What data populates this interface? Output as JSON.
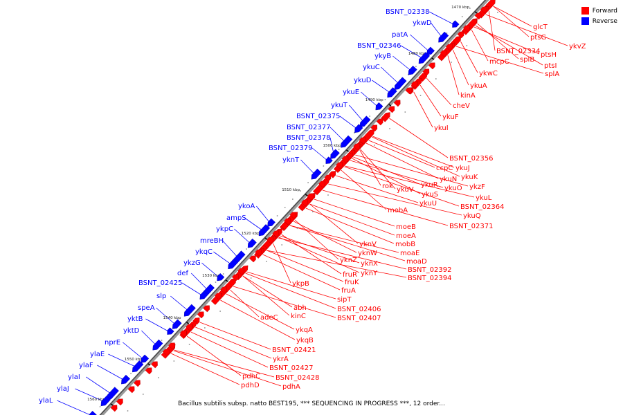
{
  "legend": [
    {
      "label": "Forward",
      "color": "#ff0000"
    },
    {
      "label": "Reverse",
      "color": "#0000ff"
    }
  ],
  "caption": "Bacillus subtilis subsp. natto BEST195, *** SEQUENCING IN PROGRESS ***, 12 order...",
  "ticks": [
    "1470 kbp",
    "1480 kbp",
    "1490 kbp",
    "1500 kbp",
    "1510 kbp",
    "1520 kbp",
    "1530 kbp",
    "1540 kbp",
    "1550 kbp",
    "1560 kbp"
  ],
  "reverse_genes": [
    "BSNT_02338",
    "ykwD",
    "patA",
    "BSNT_02346",
    "ykyB",
    "ykuC",
    "ykuD",
    "ykuE",
    "ykuT",
    "BSNT_02375",
    "BSNT_02377",
    "BSNT_02378",
    "BSNT_02379",
    "yknT",
    "ykoA",
    "ampS",
    "ykpC",
    "mreBH",
    "ykqC",
    "ykzG",
    "def",
    "BSNT_02425",
    "slp",
    "speA",
    "yktB",
    "yktD",
    "nprE",
    "ylaE",
    "ylaF",
    "ylaI",
    "ylaJ",
    "ylaL"
  ],
  "forward_genes": [
    "glcT",
    "ykvZ",
    "ptsG",
    "BSNT_02334",
    "ptsH",
    "mcpC",
    "splB",
    "ptsI",
    "splA",
    "ykwC",
    "ykuA",
    "kinA",
    "cheV",
    "ykuF",
    "ykuI",
    "BSNT_02356",
    "ccpC",
    "ykuJ",
    "ykuN",
    "ykuK",
    "ykuO",
    "ykzF",
    "rok",
    "ykuV",
    "ykuR",
    "ykuL",
    "ykuS",
    "BSNT_02364",
    "ykuU",
    "ykuQ",
    "BSNT_02371",
    "mobA",
    "moeB",
    "moeA",
    "mobB",
    "yknV",
    "moaE",
    "yknW",
    "moaD",
    "yknZ",
    "yknX",
    "BSNT_02392",
    "yknY",
    "fruR",
    "BSNT_02394",
    "fruK",
    "fruA",
    "ykpB",
    "sipT",
    "abh",
    "BSNT_02406",
    "kinC",
    "adeC",
    "BSNT_02407",
    "ykqA",
    "ykqB",
    "BSNT_02421",
    "ykrA",
    "BSNT_02427",
    "pdhC",
    "BSNT_02428",
    "pdhD",
    "pdhA"
  ]
}
